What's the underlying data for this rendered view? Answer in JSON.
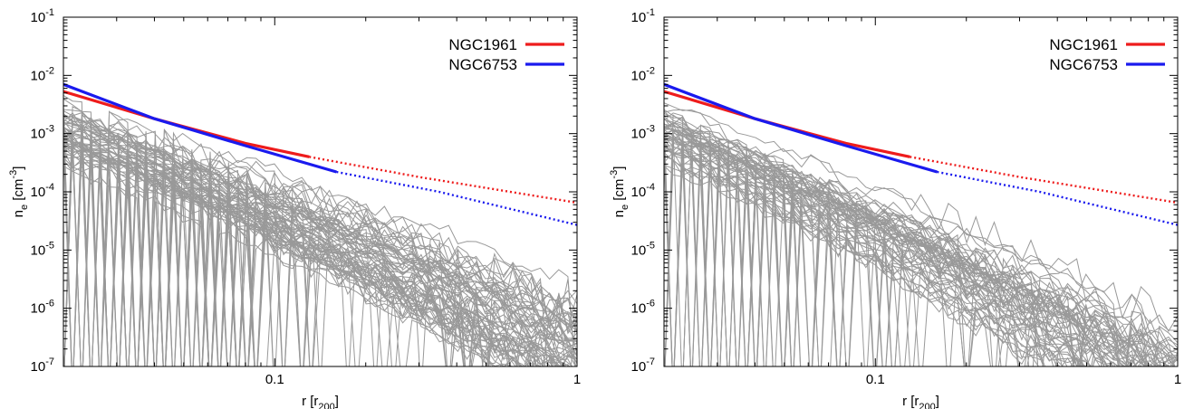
{
  "chart_data": [
    {
      "type": "line",
      "xlabel": "r [r200]",
      "ylabel": "ne [cm-3]",
      "x_scale": "log",
      "y_scale": "log",
      "xlim": [
        0.02,
        1
      ],
      "ylim": [
        1e-07,
        0.1
      ],
      "x_tick_labels": [
        "0.1",
        "1"
      ],
      "x_tick_values": [
        0.1,
        1
      ],
      "y_tick_labels": [
        "10-7",
        "10-6",
        "10-5",
        "10-4",
        "10-3",
        "10-2",
        "10-1"
      ],
      "y_tick_values": [
        1e-07,
        1e-06,
        1e-05,
        0.0001,
        0.001,
        0.01,
        0.1
      ],
      "legend_position": "top-right",
      "series": [
        {
          "name": "NGC1961",
          "color": "#ee1c1c",
          "solid": {
            "x": [
              0.02,
              0.04,
              0.08,
              0.13
            ],
            "y": [
              0.0053,
              0.0018,
              0.00068,
              0.0004
            ]
          },
          "dotted": {
            "x": [
              0.13,
              0.3,
              1.0
            ],
            "y": [
              0.0004,
              0.00018,
              6.5e-05
            ]
          }
        },
        {
          "name": "NGC6753",
          "color": "#1a1aee",
          "solid": {
            "x": [
              0.02,
              0.04,
              0.08,
              0.16
            ],
            "y": [
              0.007,
              0.0018,
              0.00062,
              0.00022
            ]
          },
          "dotted": {
            "x": [
              0.16,
              0.35,
              1.0
            ],
            "y": [
              0.00022,
              0.0001,
              2.7e-05
            ]
          }
        }
      ],
      "background_profiles": {
        "color": "#999999",
        "count": 70,
        "description": "individual simulated cluster density profiles"
      }
    },
    {
      "type": "line",
      "xlabel": "r [r200]",
      "ylabel": "ne [cm-3]",
      "x_scale": "log",
      "y_scale": "log",
      "xlim": [
        0.02,
        1
      ],
      "ylim": [
        1e-07,
        0.1
      ],
      "x_tick_labels": [
        "0.1",
        "1"
      ],
      "x_tick_values": [
        0.1,
        1
      ],
      "y_tick_labels": [
        "10-7",
        "10-6",
        "10-5",
        "10-4",
        "10-3",
        "10-2",
        "10-1"
      ],
      "y_tick_values": [
        1e-07,
        1e-06,
        1e-05,
        0.0001,
        0.001,
        0.01,
        0.1
      ],
      "legend_position": "top-right",
      "series": [
        {
          "name": "NGC1961",
          "color": "#ee1c1c",
          "solid": {
            "x": [
              0.02,
              0.04,
              0.08,
              0.13
            ],
            "y": [
              0.0053,
              0.0018,
              0.00068,
              0.0004
            ]
          },
          "dotted": {
            "x": [
              0.13,
              0.3,
              1.0
            ],
            "y": [
              0.0004,
              0.00018,
              6.5e-05
            ]
          }
        },
        {
          "name": "NGC6753",
          "color": "#1a1aee",
          "solid": {
            "x": [
              0.02,
              0.04,
              0.08,
              0.16
            ],
            "y": [
              0.007,
              0.0018,
              0.00062,
              0.00022
            ]
          },
          "dotted": {
            "x": [
              0.16,
              0.35,
              1.0
            ],
            "y": [
              0.00022,
              0.0001,
              2.7e-05
            ]
          }
        }
      ],
      "background_profiles": {
        "color": "#999999",
        "count": 60,
        "description": "individual simulated cluster density profiles"
      }
    }
  ]
}
